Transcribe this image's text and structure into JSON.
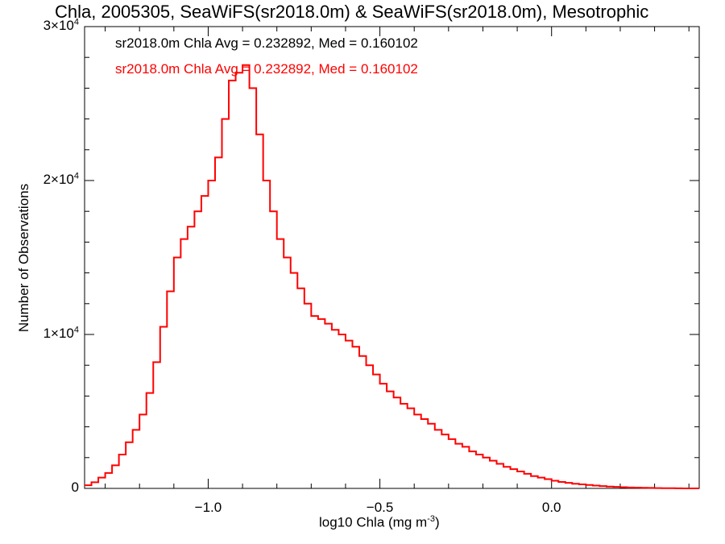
{
  "chart_data": {
    "type": "histogram",
    "title": "Chla, 2005305, SeaWiFS(sr2018.0m) & SeaWiFS(sr2018.0m), Mesotrophic",
    "xlabel": "log10 Chla (mg m",
    "xlabel_sup": "-3",
    "xlabel_suffix": ")",
    "ylabel": "Number of Observations",
    "xlim": [
      -1.36,
      0.43
    ],
    "ylim": [
      0,
      30000
    ],
    "xticks": [
      {
        "value": -1.0,
        "label": "−1.0"
      },
      {
        "value": -0.5,
        "label": "−0.5"
      },
      {
        "value": 0.0,
        "label": "0.0"
      }
    ],
    "yticks": [
      {
        "value": 0,
        "label": "0",
        "sup": ""
      },
      {
        "value": 10000,
        "label": "1×10",
        "sup": "4"
      },
      {
        "value": 20000,
        "label": "2×10",
        "sup": "4"
      },
      {
        "value": 30000,
        "label": "3×10",
        "sup": "4"
      }
    ],
    "annotations": [
      {
        "text": "sr2018.0m Chla Avg = 0.232892, Med = 0.160102",
        "color": "#000000"
      },
      {
        "text": "sr2018.0m Chla Avg = 0.232892, Med = 0.160102",
        "color": "#ff0000"
      }
    ],
    "series": [
      {
        "color": "#ff0000",
        "bin_width": 0.02,
        "x": [
          -1.36,
          -1.34,
          -1.32,
          -1.3,
          -1.28,
          -1.26,
          -1.24,
          -1.22,
          -1.2,
          -1.18,
          -1.16,
          -1.14,
          -1.12,
          -1.1,
          -1.08,
          -1.06,
          -1.04,
          -1.02,
          -1.0,
          -0.98,
          -0.96,
          -0.94,
          -0.92,
          -0.9,
          -0.88,
          -0.86,
          -0.84,
          -0.82,
          -0.8,
          -0.78,
          -0.76,
          -0.74,
          -0.72,
          -0.7,
          -0.68,
          -0.66,
          -0.64,
          -0.62,
          -0.6,
          -0.58,
          -0.56,
          -0.54,
          -0.52,
          -0.5,
          -0.48,
          -0.46,
          -0.44,
          -0.42,
          -0.4,
          -0.38,
          -0.36,
          -0.34,
          -0.32,
          -0.3,
          -0.28,
          -0.26,
          -0.24,
          -0.22,
          -0.2,
          -0.18,
          -0.16,
          -0.14,
          -0.12,
          -0.1,
          -0.08,
          -0.06,
          -0.04,
          -0.02,
          0.0,
          0.02,
          0.04,
          0.06,
          0.08,
          0.1,
          0.12,
          0.14,
          0.16,
          0.18,
          0.2,
          0.22,
          0.24,
          0.26,
          0.28,
          0.3,
          0.32,
          0.34,
          0.36,
          0.38,
          0.4,
          0.42
        ],
        "values": [
          200,
          400,
          700,
          1000,
          1500,
          2200,
          3000,
          3800,
          4800,
          6200,
          8200,
          10500,
          12800,
          15000,
          16200,
          17000,
          18000,
          19000,
          20000,
          21500,
          24000,
          26500,
          27000,
          27500,
          26000,
          23000,
          20000,
          18000,
          16200,
          15000,
          14000,
          13000,
          12000,
          11200,
          11000,
          10700,
          10300,
          10000,
          9600,
          9200,
          8600,
          8000,
          7400,
          6800,
          6300,
          5900,
          5500,
          5200,
          4800,
          4500,
          4200,
          3800,
          3500,
          3200,
          2900,
          2700,
          2400,
          2200,
          2000,
          1800,
          1600,
          1400,
          1250,
          1100,
          950,
          800,
          700,
          600,
          500,
          420,
          360,
          300,
          260,
          220,
          180,
          150,
          120,
          100,
          80,
          60,
          50,
          40,
          30,
          20,
          15,
          10,
          5,
          0,
          0,
          0
        ]
      }
    ]
  }
}
